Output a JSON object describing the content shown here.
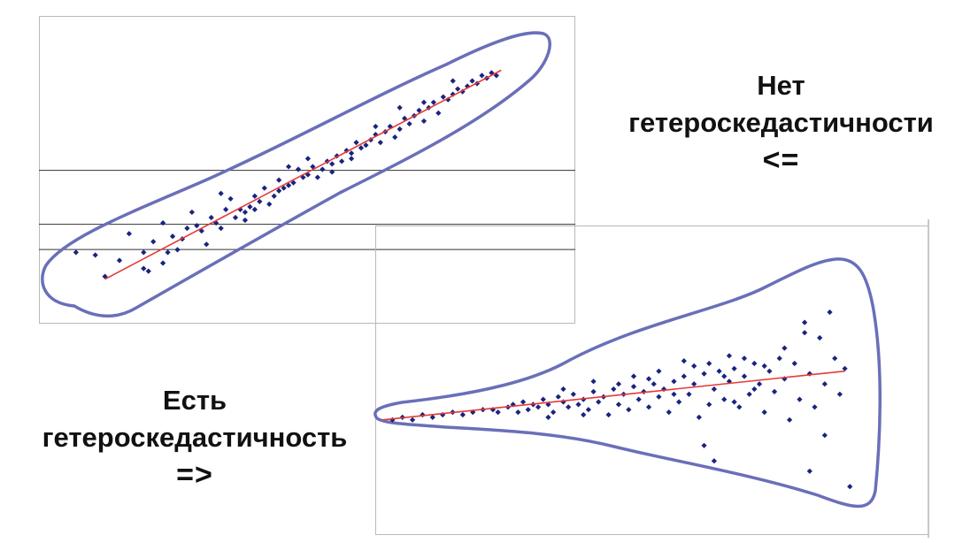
{
  "captions": {
    "top": {
      "line1": "Нет",
      "line2": "гетероскедастичности",
      "arrow": "<="
    },
    "bottom": {
      "line1": "Есть",
      "line2": "гетероскедастичность",
      "arrow": "=>"
    }
  },
  "colors": {
    "points": "#1a237e",
    "trend": "#e53935",
    "envelope": "#6a6fb8",
    "frame": "#b9b9b9",
    "grid": "#333333"
  },
  "chart_data": [
    {
      "type": "scatter",
      "title": "",
      "xlim": [
        0,
        100
      ],
      "ylim": [
        0,
        100
      ],
      "grid_lines_y": [
        50.6,
        30.5,
        21.1
      ],
      "trend": {
        "from": [
          10,
          10
        ],
        "to": [
          92,
          88
        ]
      },
      "points": [
        [
          4,
          20
        ],
        [
          8,
          19
        ],
        [
          10,
          11
        ],
        [
          13,
          17
        ],
        [
          15,
          27
        ],
        [
          18,
          14
        ],
        [
          19,
          13
        ],
        [
          20,
          24
        ],
        [
          22,
          16
        ],
        [
          22,
          31
        ],
        [
          23,
          20
        ],
        [
          24,
          26
        ],
        [
          25,
          21
        ],
        [
          26,
          25
        ],
        [
          27,
          29
        ],
        [
          28,
          35
        ],
        [
          30,
          28
        ],
        [
          31,
          23
        ],
        [
          32,
          33
        ],
        [
          33,
          31
        ],
        [
          34,
          29
        ],
        [
          35,
          36
        ],
        [
          36,
          40
        ],
        [
          37,
          33
        ],
        [
          38,
          36
        ],
        [
          39,
          32
        ],
        [
          40,
          37
        ],
        [
          41,
          41
        ],
        [
          42,
          39
        ],
        [
          43,
          44
        ],
        [
          44,
          38
        ],
        [
          45,
          41
        ],
        [
          46,
          47
        ],
        [
          47,
          44
        ],
        [
          48,
          45
        ],
        [
          49,
          46
        ],
        [
          50,
          51
        ],
        [
          51,
          48
        ],
        [
          52,
          49
        ],
        [
          53,
          52
        ],
        [
          54,
          48
        ],
        [
          55,
          51
        ],
        [
          56,
          54
        ],
        [
          57,
          53
        ],
        [
          58,
          56
        ],
        [
          59,
          54
        ],
        [
          60,
          58
        ],
        [
          61,
          57
        ],
        [
          62,
          61
        ],
        [
          63,
          59
        ],
        [
          64,
          60
        ],
        [
          65,
          62
        ],
        [
          66,
          64
        ],
        [
          67,
          61
        ],
        [
          68,
          65
        ],
        [
          69,
          67
        ],
        [
          70,
          63
        ],
        [
          71,
          66
        ],
        [
          72,
          70
        ],
        [
          73,
          68
        ],
        [
          74,
          71
        ],
        [
          75,
          73
        ],
        [
          76,
          69
        ],
        [
          77,
          74
        ],
        [
          78,
          76
        ],
        [
          79,
          72
        ],
        [
          80,
          78
        ],
        [
          81,
          77
        ],
        [
          82,
          79
        ],
        [
          83,
          81
        ],
        [
          84,
          80
        ],
        [
          85,
          82
        ],
        [
          86,
          84
        ],
        [
          87,
          83
        ],
        [
          88,
          86
        ],
        [
          89,
          85
        ],
        [
          90,
          87
        ],
        [
          91,
          86
        ],
        [
          29,
          30
        ],
        [
          34,
          42
        ],
        [
          39,
          35
        ],
        [
          46,
          43
        ],
        [
          52,
          55
        ],
        [
          57,
          50
        ],
        [
          61,
          55
        ],
        [
          66,
          67
        ],
        [
          71,
          74
        ],
        [
          76,
          76
        ],
        [
          82,
          84
        ],
        [
          18,
          20
        ],
        [
          41,
          36
        ],
        [
          48,
          52
        ]
      ]
    },
    {
      "type": "scatter",
      "title": "",
      "xlim": [
        0,
        100
      ],
      "ylim": [
        0,
        100
      ],
      "trend": {
        "from": [
          0,
          38
        ],
        "to": [
          92,
          57
        ]
      },
      "points": [
        [
          2,
          38
        ],
        [
          4,
          39
        ],
        [
          6,
          38
        ],
        [
          8,
          40
        ],
        [
          10,
          39
        ],
        [
          12,
          40
        ],
        [
          14,
          41
        ],
        [
          16,
          40
        ],
        [
          18,
          41
        ],
        [
          20,
          42
        ],
        [
          22,
          42
        ],
        [
          23,
          41
        ],
        [
          25,
          43
        ],
        [
          26,
          44
        ],
        [
          27,
          41
        ],
        [
          28,
          45
        ],
        [
          29,
          42
        ],
        [
          30,
          44
        ],
        [
          31,
          43
        ],
        [
          32,
          46
        ],
        [
          33,
          44
        ],
        [
          34,
          41
        ],
        [
          35,
          47
        ],
        [
          36,
          45
        ],
        [
          37,
          43
        ],
        [
          38,
          48
        ],
        [
          39,
          44
        ],
        [
          40,
          46
        ],
        [
          41,
          42
        ],
        [
          42,
          49
        ],
        [
          43,
          45
        ],
        [
          44,
          47
        ],
        [
          45,
          40
        ],
        [
          46,
          50
        ],
        [
          47,
          44
        ],
        [
          48,
          48
        ],
        [
          49,
          42
        ],
        [
          50,
          51
        ],
        [
          51,
          46
        ],
        [
          52,
          49
        ],
        [
          53,
          43
        ],
        [
          54,
          52
        ],
        [
          55,
          47
        ],
        [
          56,
          50
        ],
        [
          57,
          41
        ],
        [
          58,
          53
        ],
        [
          59,
          45
        ],
        [
          60,
          55
        ],
        [
          61,
          48
        ],
        [
          62,
          52
        ],
        [
          63,
          39
        ],
        [
          64,
          56
        ],
        [
          65,
          44
        ],
        [
          66,
          50
        ],
        [
          67,
          57
        ],
        [
          68,
          46
        ],
        [
          69,
          53
        ],
        [
          70,
          58
        ],
        [
          71,
          43
        ],
        [
          72,
          55
        ],
        [
          73,
          48
        ],
        [
          74,
          60
        ],
        [
          75,
          52
        ],
        [
          76,
          41
        ],
        [
          77,
          57
        ],
        [
          78,
          49
        ],
        [
          79,
          62
        ],
        [
          80,
          54
        ],
        [
          81,
          38
        ],
        [
          82,
          60
        ],
        [
          83,
          46
        ],
        [
          84,
          76
        ],
        [
          85,
          56
        ],
        [
          86,
          43
        ],
        [
          87,
          70
        ],
        [
          88,
          52
        ],
        [
          89,
          80
        ],
        [
          90,
          62
        ],
        [
          91,
          48
        ],
        [
          92,
          58
        ],
        [
          88,
          32
        ],
        [
          66,
          22
        ],
        [
          64,
          28
        ],
        [
          93,
          12
        ],
        [
          85,
          18
        ],
        [
          33,
          39
        ],
        [
          40,
          40
        ],
        [
          47,
          52
        ],
        [
          53,
          54
        ],
        [
          58,
          48
        ],
        [
          62,
          59
        ],
        [
          68,
          55
        ],
        [
          72,
          62
        ],
        [
          76,
          59
        ],
        [
          80,
          66
        ],
        [
          84,
          72
        ],
        [
          74,
          50
        ],
        [
          70,
          45
        ],
        [
          36,
          50
        ],
        [
          42,
          53
        ],
        [
          50,
          55
        ],
        [
          55,
          57
        ],
        [
          60,
          61
        ],
        [
          65,
          60
        ],
        [
          69,
          63
        ]
      ]
    }
  ]
}
